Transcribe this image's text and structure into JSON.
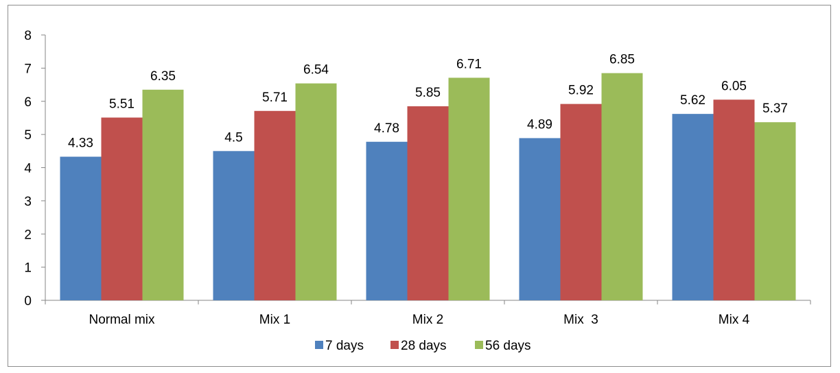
{
  "chart_data": {
    "type": "bar",
    "categories": [
      "Normal mix",
      "Mix 1",
      "Mix 2",
      "Mix  3",
      "Mix 4"
    ],
    "series": [
      {
        "name": "7 days",
        "color": "#4f81bd",
        "values": [
          4.33,
          4.5,
          4.78,
          4.89,
          5.62
        ]
      },
      {
        "name": "28 days",
        "color": "#c0504d",
        "values": [
          5.51,
          5.71,
          5.85,
          5.92,
          6.05
        ]
      },
      {
        "name": "56 days",
        "color": "#9bbb59",
        "values": [
          6.35,
          6.54,
          6.71,
          6.85,
          5.37
        ]
      }
    ],
    "data_labels": [
      [
        "4.33",
        "4.5",
        "4.78",
        "4.89",
        "5.62"
      ],
      [
        "5.51",
        "5.71",
        "5.85",
        "5.92",
        "6.05"
      ],
      [
        "6.35",
        "6.54",
        "6.71",
        "6.85",
        "5.37"
      ]
    ],
    "y_ticks": [
      "0",
      "1",
      "2",
      "3",
      "4",
      "5",
      "6",
      "7",
      "8"
    ],
    "ylim": [
      0,
      8
    ],
    "title": "",
    "xlabel": "",
    "ylabel": "",
    "grid": false,
    "legend_position": "bottom"
  }
}
